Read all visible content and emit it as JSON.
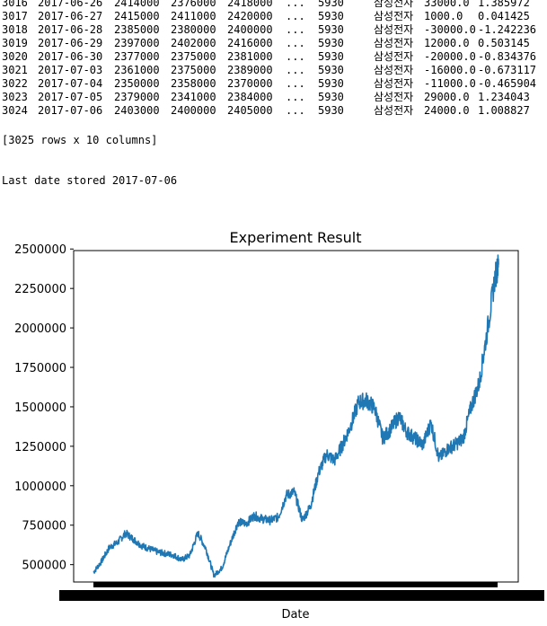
{
  "output": {
    "table_rows": [
      {
        "idx": "3016",
        "date": "2017-06-26",
        "c1": "2414000",
        "c2": "2376000",
        "c3": "2418000",
        "dots": "...",
        "code": "5930",
        "name": "삼성전자",
        "chg": "33000.0",
        "pct": "1.385972"
      },
      {
        "idx": "3017",
        "date": "2017-06-27",
        "c1": "2415000",
        "c2": "2411000",
        "c3": "2420000",
        "dots": "...",
        "code": "5930",
        "name": "삼성전자",
        "chg": "1000.0",
        "pct": "0.041425"
      },
      {
        "idx": "3018",
        "date": "2017-06-28",
        "c1": "2385000",
        "c2": "2380000",
        "c3": "2400000",
        "dots": "...",
        "code": "5930",
        "name": "삼성전자",
        "chg": "-30000.0",
        "pct": "-1.242236"
      },
      {
        "idx": "3019",
        "date": "2017-06-29",
        "c1": "2397000",
        "c2": "2402000",
        "c3": "2416000",
        "dots": "...",
        "code": "5930",
        "name": "삼성전자",
        "chg": "12000.0",
        "pct": "0.503145"
      },
      {
        "idx": "3020",
        "date": "2017-06-30",
        "c1": "2377000",
        "c2": "2375000",
        "c3": "2381000",
        "dots": "...",
        "code": "5930",
        "name": "삼성전자",
        "chg": "-20000.0",
        "pct": "-0.834376"
      },
      {
        "idx": "3021",
        "date": "2017-07-03",
        "c1": "2361000",
        "c2": "2375000",
        "c3": "2389000",
        "dots": "...",
        "code": "5930",
        "name": "삼성전자",
        "chg": "-16000.0",
        "pct": "-0.673117"
      },
      {
        "idx": "3022",
        "date": "2017-07-04",
        "c1": "2350000",
        "c2": "2358000",
        "c3": "2370000",
        "dots": "...",
        "code": "5930",
        "name": "삼성전자",
        "chg": "-11000.0",
        "pct": "-0.465904"
      },
      {
        "idx": "3023",
        "date": "2017-07-05",
        "c1": "2379000",
        "c2": "2341000",
        "c3": "2384000",
        "dots": "...",
        "code": "5930",
        "name": "삼성전자",
        "chg": "29000.0",
        "pct": "1.234043"
      },
      {
        "idx": "3024",
        "date": "2017-07-06",
        "c1": "2403000",
        "c2": "2400000",
        "c3": "2405000",
        "dots": "...",
        "code": "5930",
        "name": "삼성전자",
        "chg": "24000.0",
        "pct": "1.008827"
      }
    ],
    "shape": "[3025 rows x 10 columns]",
    "last_date": "Last date stored 2017-07-06"
  },
  "colors": {
    "series": "#1f77b4",
    "axes": "#000000",
    "background": "#ffffff"
  },
  "chart_data": {
    "type": "line",
    "title": "Experiment Result",
    "xlabel": "Date",
    "ylabel": "",
    "ylim": [
      390000,
      2490000
    ],
    "yticks": [
      500000,
      750000,
      1000000,
      1250000,
      1500000,
      1750000,
      2000000,
      2250000,
      2500000
    ],
    "ytick_labels": [
      "500000",
      "750000",
      "1000000",
      "1250000",
      "1500000",
      "1750000",
      "2000000",
      "2250000",
      "2500000"
    ],
    "x_ticks_note": "x tick labels overlap into an unreadable black band",
    "grid": false,
    "series": [
      {
        "x": [
          0,
          60,
          120,
          180,
          240,
          300,
          360,
          420,
          480,
          540,
          600,
          660,
          720,
          780,
          840,
          900,
          960,
          1020,
          1080,
          1140,
          1200,
          1260,
          1320,
          1380,
          1440,
          1500,
          1560,
          1620,
          1680,
          1740,
          1800,
          1860,
          1920,
          1980,
          2040,
          2100,
          2160,
          2220,
          2280,
          2340,
          2400,
          2460,
          2520,
          2580,
          2640,
          2700,
          2760,
          2820,
          2880,
          2940,
          3000,
          3024
        ],
        "values": [
          450000,
          520000,
          610000,
          640000,
          700000,
          660000,
          620000,
          600000,
          580000,
          570000,
          560000,
          530000,
          560000,
          700000,
          600000,
          430000,
          480000,
          630000,
          770000,
          760000,
          810000,
          790000,
          780000,
          800000,
          940000,
          960000,
          780000,
          870000,
          1080000,
          1200000,
          1160000,
          1260000,
          1380000,
          1530000,
          1540000,
          1490000,
          1300000,
          1360000,
          1440000,
          1340000,
          1300000,
          1260000,
          1400000,
          1170000,
          1230000,
          1260000,
          1300000,
          1500000,
          1650000,
          1980000,
          2330000,
          2400000
        ]
      }
    ]
  }
}
